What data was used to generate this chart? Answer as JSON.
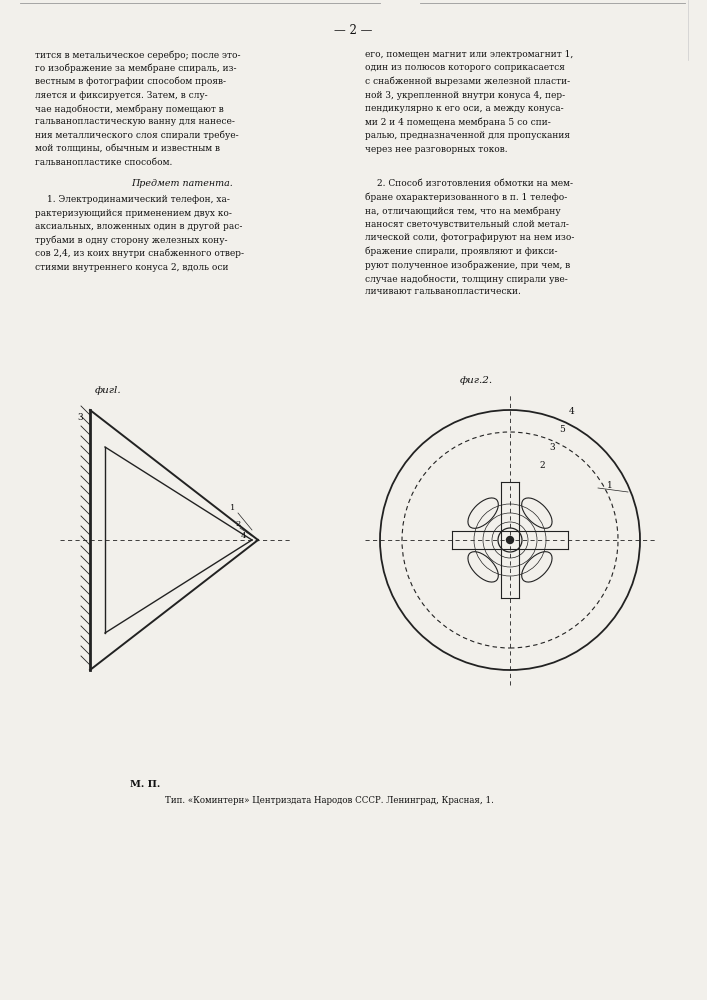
{
  "background_color": "#f2f0eb",
  "page_number": "— 2 —",
  "left_column_lines": [
    "тится в метальическое серебро; после это-",
    "го изображение за мембране спираль, из-",
    "вестным в фотографии способом прояв-",
    "ляется и фиксируется. Затем, в слу-",
    "чае надобности, мембрану помещают в",
    "гальванопластическую ванну для нанесе-",
    "ния металлического слоя спирали требуе-",
    "мой толщины, обычным и известным в",
    "гальванопластике способом."
  ],
  "right_column_lines": [
    "его, помещен магнит или электромагнит 1,",
    "один из полюсов которого соприкасается",
    "с снабженной вырезами железной пласти-",
    "ной 3, укрепленной внутри конуса 4, пер-",
    "пендикулярно к его оси, а между конуса-",
    "ми 2 и 4 помещена мембрана 5 со спи-",
    "ралью, предназначенной для пропускания",
    "через нее разговорных токов."
  ],
  "section_title": "Предмет патента.",
  "left_patent_lines": [
    "1. Электродинамический телефон, ха-",
    "рактеризующийся применением двух ко-",
    "аксиальных, вложенных один в другой рас-",
    "трубами в одну сторону железных кону-",
    "сов 2,4, из коих внутри снабженного отвер-",
    "стиями внутреннего конуса 2, вдоль оси"
  ],
  "right_patent_lines": [
    "2. Способ изготовления обмотки на мем-",
    "бране охарактеризованного в п. 1 телефо-",
    "на, отличающийся тем, что на мембрану",
    "наносят светочувствительный слой метал-",
    "лической соли, фотографируют на нем изо-",
    "бражение спирали, проявляют и фикси-",
    "руют полученное изображение, при чем, в",
    "случае надобности, толщину спирали уве-",
    "личивают гальванопластически."
  ],
  "fig1_label": "фигl.",
  "fig2_label": "фиг.2.",
  "footer_line1": "М. П.",
  "footer_line2": "Тип. «Коминтерн» Центриздата Народов СССР. Ленинград, Красная, 1.",
  "text_color": "#111111",
  "line_color": "#222222"
}
